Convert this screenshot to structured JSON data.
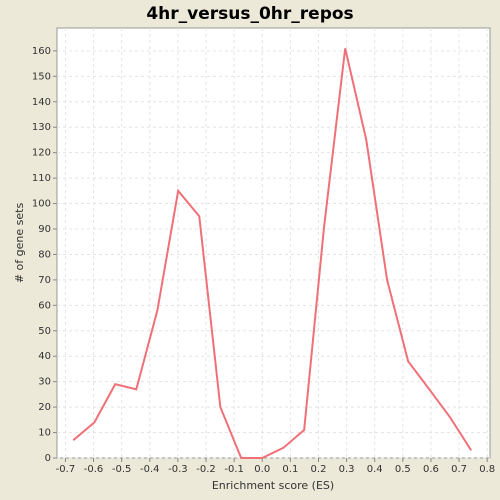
{
  "chart_data": {
    "type": "line",
    "title": "4hr_versus_0hr_repos",
    "x_label": "Enrichment score (ES)",
    "y_label": "# of gene sets",
    "x": [
      -0.672,
      -0.597,
      -0.523,
      -0.448,
      -0.373,
      -0.299,
      -0.224,
      -0.149,
      -0.075,
      0.0,
      0.075,
      0.149,
      0.22,
      0.295,
      0.37,
      0.444,
      0.519,
      0.594,
      0.668,
      0.743
    ],
    "series": [
      {
        "color": "#f07078",
        "values": [
          7,
          14,
          29,
          27,
          58,
          105,
          95,
          20,
          0,
          0,
          4,
          11,
          91,
          161,
          125,
          70,
          38,
          27,
          16,
          3
        ]
      }
    ],
    "xlim": [
      -0.73,
      0.81
    ],
    "ylim": [
      0,
      169
    ],
    "xticks": [
      -0.7,
      -0.6,
      -0.5,
      -0.4,
      -0.3,
      -0.2,
      -0.1,
      {
        "value": 0,
        "label": "0.0"
      },
      0.1,
      0.2,
      0.3,
      0.4,
      0.5,
      0.6,
      0.7,
      0.8
    ],
    "yticks": [
      0,
      10,
      20,
      30,
      40,
      50,
      60,
      70,
      80,
      90,
      100,
      110,
      120,
      130,
      140,
      150,
      160
    ],
    "grid": true
  }
}
